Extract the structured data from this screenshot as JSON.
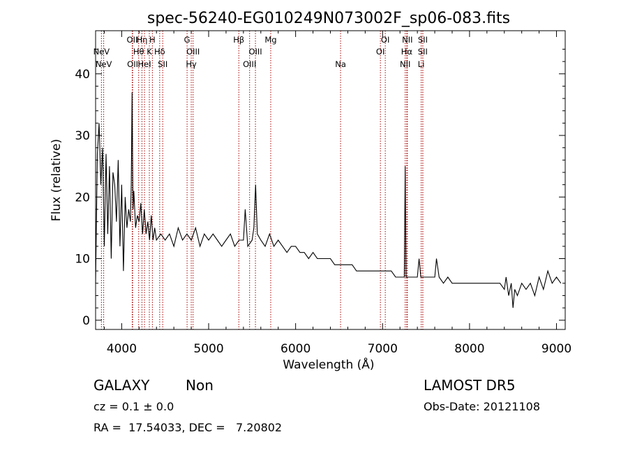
{
  "chart_data": {
    "type": "line",
    "title": "spec-56240-EG010249N073002F_sp06-083.fits",
    "xlabel": "Wavelength (Å)",
    "ylabel": "Flux (relative)",
    "xlim": [
      3700,
      9100
    ],
    "ylim": [
      -1.5,
      47
    ],
    "x_ticks": [
      4000,
      5000,
      6000,
      7000,
      8000,
      9000
    ],
    "y_ticks": [
      0,
      10,
      20,
      30,
      40
    ],
    "grid": false,
    "line_color": "#000000",
    "marker_color": "#aa0000",
    "series": [
      {
        "x": [
          3700,
          3720,
          3740,
          3760,
          3780,
          3800,
          3820,
          3840,
          3860,
          3880,
          3900,
          3920,
          3940,
          3960,
          3980,
          4000,
          4020,
          4040,
          4060,
          4080,
          4100,
          4110,
          4120,
          4130,
          4140,
          4160,
          4180,
          4200,
          4220,
          4240,
          4260,
          4280,
          4300,
          4320,
          4340,
          4360,
          4380,
          4400,
          4450,
          4500,
          4550,
          4600,
          4650,
          4700,
          4750,
          4800,
          4850,
          4900,
          4950,
          5000,
          5050,
          5100,
          5150,
          5200,
          5250,
          5300,
          5350,
          5400,
          5420,
          5450,
          5500,
          5520,
          5540,
          5560,
          5600,
          5650,
          5700,
          5750,
          5800,
          5850,
          5900,
          5950,
          6000,
          6050,
          6100,
          6150,
          6200,
          6250,
          6300,
          6350,
          6400,
          6450,
          6500,
          6550,
          6600,
          6650,
          6700,
          6750,
          6800,
          6850,
          6900,
          6950,
          7000,
          7050,
          7100,
          7150,
          7200,
          7230,
          7250,
          7260,
          7270,
          7300,
          7350,
          7400,
          7420,
          7440,
          7460,
          7500,
          7550,
          7600,
          7620,
          7650,
          7700,
          7750,
          7800,
          7850,
          7900,
          7950,
          8000,
          8050,
          8100,
          8150,
          8200,
          8250,
          8300,
          8350,
          8400,
          8420,
          8450,
          8480,
          8500,
          8520,
          8550,
          8600,
          8650,
          8700,
          8750,
          8800,
          8850,
          8900,
          8950,
          9000,
          9050
        ],
        "y": [
          6,
          27,
          32,
          22,
          28,
          12,
          27,
          14,
          25,
          10,
          24,
          22,
          16,
          26,
          12,
          22,
          8,
          20,
          15,
          18,
          16,
          22,
          37,
          18,
          21,
          15,
          17,
          16,
          19,
          14,
          18,
          14,
          16,
          13,
          17,
          13,
          15,
          13,
          14,
          13,
          14,
          12,
          15,
          13,
          14,
          13,
          15,
          12,
          14,
          13,
          14,
          13,
          12,
          13,
          14,
          12,
          13,
          13,
          18,
          12,
          13,
          15,
          22,
          14,
          13,
          12,
          14,
          12,
          13,
          12,
          11,
          12,
          12,
          11,
          11,
          10,
          11,
          10,
          10,
          10,
          10,
          9,
          9,
          9,
          9,
          9,
          8,
          8,
          8,
          8,
          8,
          8,
          8,
          8,
          8,
          7,
          7,
          7,
          7,
          25,
          7,
          7,
          7,
          7,
          10,
          7,
          7,
          7,
          7,
          7,
          10,
          7,
          6,
          7,
          6,
          6,
          6,
          6,
          6,
          6,
          6,
          6,
          6,
          6,
          6,
          6,
          5,
          7,
          4,
          6,
          2,
          5,
          4,
          6,
          5,
          6,
          4,
          7,
          5,
          8,
          6,
          7,
          6
        ]
      }
    ],
    "line_markers": [
      {
        "label": "NeV",
        "x": 3767,
        "row": 1
      },
      {
        "label": "NeV",
        "x": 3793,
        "row": 2
      },
      {
        "label": "OII",
        "x": 4121,
        "row": 0
      },
      {
        "label": "Hη",
        "x": 4233,
        "row": 0
      },
      {
        "label": "H",
        "x": 4353,
        "row": 0
      },
      {
        "label": "OII",
        "x": 4126,
        "row": 2
      },
      {
        "label": "Hθ",
        "x": 4195,
        "row": 1
      },
      {
        "label": "HeI",
        "x": 4262,
        "row": 2
      },
      {
        "label": "K",
        "x": 4318,
        "row": 1
      },
      {
        "label": "Hδ",
        "x": 4437,
        "row": 1
      },
      {
        "label": "SII",
        "x": 4472,
        "row": 2
      },
      {
        "label": "G",
        "x": 4752,
        "row": 0
      },
      {
        "label": "OIII",
        "x": 4821,
        "row": 1
      },
      {
        "label": "Hγ",
        "x": 4800,
        "row": 2
      },
      {
        "label": "Hβ",
        "x": 5347,
        "row": 0
      },
      {
        "label": "OIII",
        "x": 5538,
        "row": 1
      },
      {
        "label": "OIII",
        "x": 5471,
        "row": 2
      },
      {
        "label": "Mg",
        "x": 5714,
        "row": 0
      },
      {
        "label": "Na",
        "x": 6517,
        "row": 2
      },
      {
        "label": "OI",
        "x": 7031,
        "row": 0
      },
      {
        "label": "OI",
        "x": 6975,
        "row": 1
      },
      {
        "label": "NII",
        "x": 7285,
        "row": 0
      },
      {
        "label": "Hα",
        "x": 7278,
        "row": 1
      },
      {
        "label": "NII",
        "x": 7260,
        "row": 2
      },
      {
        "label": "SII",
        "x": 7463,
        "row": 0
      },
      {
        "label": "SII",
        "x": 7462,
        "row": 1
      },
      {
        "label": "Li",
        "x": 7444,
        "row": 2
      }
    ]
  },
  "info": {
    "class": "GALAXY",
    "subclass": "Non",
    "survey": "LAMOST DR5",
    "cz": "cz = 0.1 ± 0.0",
    "obs_date": "Obs-Date: 20121108",
    "coords": "RA =  17.54033, DEC =   7.20802"
  }
}
